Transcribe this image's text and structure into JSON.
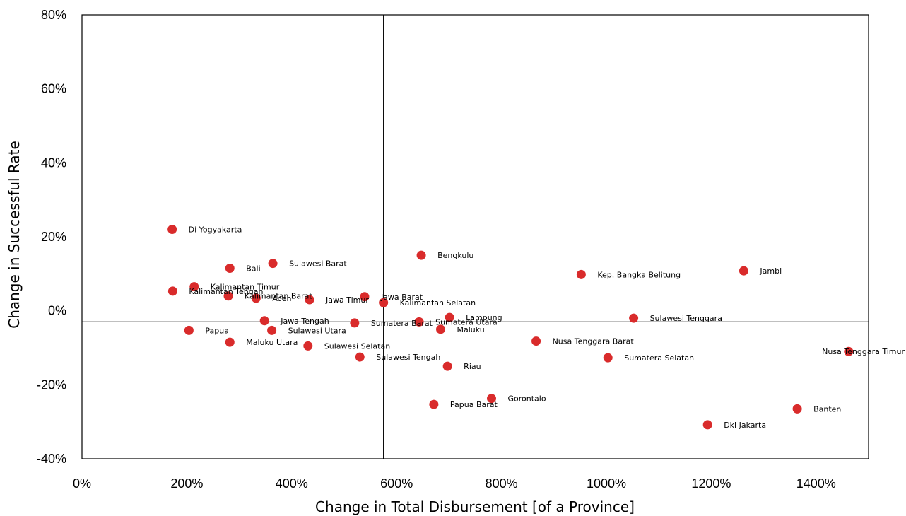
{
  "chart_data": {
    "type": "scatter",
    "title": "",
    "xlabel": "Change in Total Disbursement [of a Province]",
    "ylabel": "Change in Successful Rate",
    "xlim": [
      0,
      1500
    ],
    "ylim": [
      -40,
      80
    ],
    "x_ticks": [
      0,
      200,
      400,
      600,
      800,
      1000,
      1200,
      1400
    ],
    "y_ticks": [
      -40,
      -20,
      0,
      20,
      40,
      60,
      80
    ],
    "x_tick_labels": [
      "0%",
      "200%",
      "400%",
      "600%",
      "800%",
      "1000%",
      "1200%",
      "1400%"
    ],
    "y_tick_labels": [
      "-40%",
      "-20%",
      "0%",
      "20%",
      "40%",
      "60%",
      "80%"
    ],
    "reference_lines": {
      "x": 575,
      "y": -3
    },
    "grid": false,
    "legend": "none",
    "marker_color": "#d92b2b",
    "points": [
      {
        "label": "Di Yogyakarta",
        "x": 172,
        "y": 22
      },
      {
        "label": "Bali",
        "x": 282,
        "y": 11.5
      },
      {
        "label": "Sulawesi Barat",
        "x": 364,
        "y": 12.8
      },
      {
        "label": "Bengkulu",
        "x": 647,
        "y": 15
      },
      {
        "label": "Kep. Bangka Belitung",
        "x": 952,
        "y": 9.8
      },
      {
        "label": "Jambi",
        "x": 1262,
        "y": 10.8
      },
      {
        "label": "Kalimantan Timur",
        "x": 214,
        "y": 6.5
      },
      {
        "label": "Kalimantan Tengah",
        "x": 173,
        "y": 5.3
      },
      {
        "label": "Kalimantan Barat",
        "x": 279,
        "y": 4
      },
      {
        "label": "Aceh",
        "x": 332,
        "y": 3.4
      },
      {
        "label": "Jawa Timur",
        "x": 434,
        "y": 3
      },
      {
        "label": "Jawa Barat",
        "x": 539,
        "y": 3.8
      },
      {
        "label": "Kalimantan Selatan",
        "x": 575,
        "y": 2.2
      },
      {
        "label": "Lampung",
        "x": 701,
        "y": -1.8
      },
      {
        "label": "Sulawesi Tenggara",
        "x": 1052,
        "y": -2
      },
      {
        "label": "Jawa Tengah",
        "x": 348,
        "y": -2.7
      },
      {
        "label": "Sumatera Barat",
        "x": 520,
        "y": -3.3
      },
      {
        "label": "Sumatera Utara",
        "x": 643,
        "y": -3
      },
      {
        "label": "Papua",
        "x": 204,
        "y": -5.3
      },
      {
        "label": "Sulawesi Utara",
        "x": 362,
        "y": -5.3
      },
      {
        "label": "Maluku",
        "x": 684,
        "y": -5
      },
      {
        "label": "Maluku Utara",
        "x": 282,
        "y": -8.5
      },
      {
        "label": "Sulawesi Selatan",
        "x": 431,
        "y": -9.5
      },
      {
        "label": "Nusa Tenggara Barat",
        "x": 866,
        "y": -8.2
      },
      {
        "label": "Sulawesi Tengah",
        "x": 530,
        "y": -12.5
      },
      {
        "label": "Sumatera Selatan",
        "x": 1003,
        "y": -12.7
      },
      {
        "label": "Nusa Tenggara Timur",
        "x": 1462,
        "y": -11
      },
      {
        "label": "Riau",
        "x": 697,
        "y": -15
      },
      {
        "label": "Gorontalo",
        "x": 781,
        "y": -23.7
      },
      {
        "label": "Papua Barat",
        "x": 671,
        "y": -25.3
      },
      {
        "label": "Banten",
        "x": 1364,
        "y": -26.5
      },
      {
        "label": "Dki Jakarta",
        "x": 1193,
        "y": -30.8
      }
    ]
  }
}
